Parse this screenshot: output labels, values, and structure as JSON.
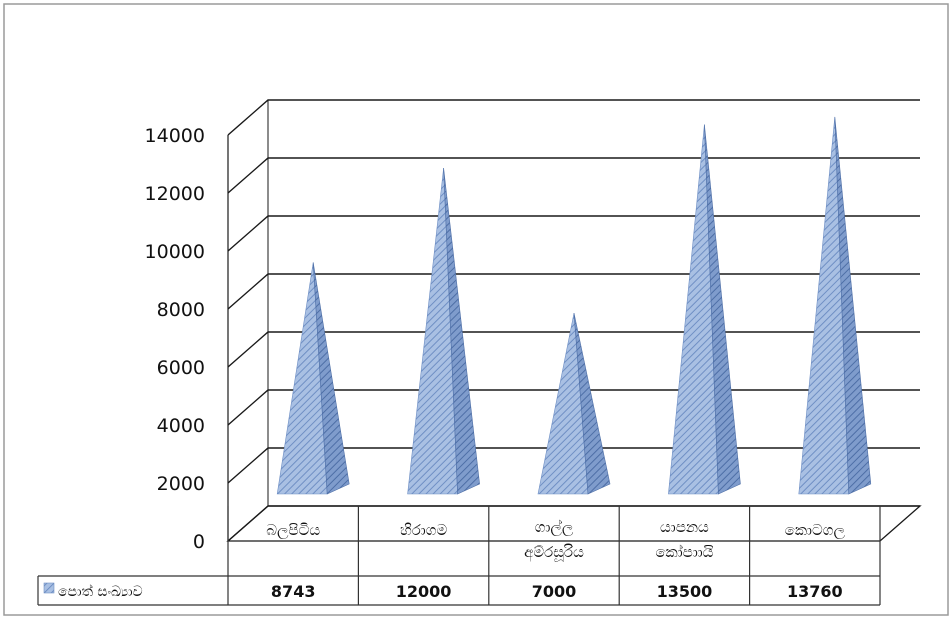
{
  "chart_data": {
    "type": "bar",
    "bar_shape": "pyramid-3d",
    "categories": [
      "බලපිටිය",
      "හිරාගම",
      "ගාල්ල අම්රසූරිය",
      "යාපනය කෝපාායි",
      "කොටගල"
    ],
    "category_lines": [
      [
        "බලපිටිය"
      ],
      [
        "හිරාගම"
      ],
      [
        "ගාල්ල",
        "අම්රසූරිය"
      ],
      [
        "යාපනය",
        "කෝපාායි"
      ],
      [
        "කොටගල"
      ]
    ],
    "series": [
      {
        "name": "පොත් සංඛ්‍යාව",
        "values": [
          8743,
          12000,
          7000,
          13500,
          13760
        ],
        "color": "#8eaadb"
      }
    ],
    "value_labels": [
      "8743",
      "12000",
      "7000",
      "13500",
      "13760"
    ],
    "ylim": [
      0,
      14000
    ],
    "yticks": [
      0,
      2000,
      4000,
      6000,
      8000,
      10000,
      12000,
      14000
    ],
    "grid": true,
    "data_table": true,
    "legend": "in-data-table"
  }
}
